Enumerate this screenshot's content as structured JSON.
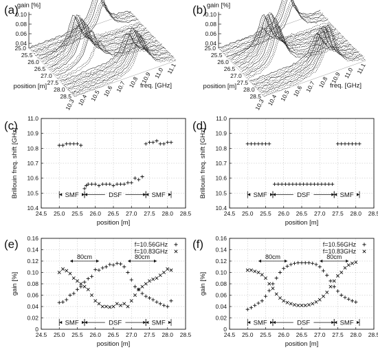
{
  "panel_letters": [
    "(a)",
    "(b)",
    "(c)",
    "(d)",
    "(e)",
    "(f)"
  ],
  "chart_data": [
    {
      "id": "a",
      "type": "area",
      "zlabel": "gain [%]",
      "xlabel": "position [m]",
      "ylabel": "freq. [GHz]",
      "ztick_labels": [
        "0.10",
        "0.08",
        "0.06",
        "0.04"
      ],
      "xtick_labels": [
        "25.0",
        "25.5",
        "26.0",
        "26.5",
        "27.0",
        "27.5",
        "28.0",
        "28.5"
      ],
      "ytick_labels": [
        "10.3",
        "10.4",
        "10.5",
        "10.6",
        "10.7",
        "10.8",
        "10.9",
        "11.0",
        "11.1"
      ],
      "zlim": [
        0.04,
        0.1
      ],
      "xlim": [
        25.0,
        28.5
      ],
      "ylim": [
        10.3,
        11.1
      ],
      "profiles": [
        {
          "position": 25.0,
          "peak_freq": 10.83,
          "peak_gain": 0.1
        },
        {
          "position": 25.25,
          "peak_freq": 10.83,
          "peak_gain": 0.1
        },
        {
          "position": 25.5,
          "peak_freq": 10.83,
          "peak_gain": 0.09
        },
        {
          "position": 25.75,
          "peak_freq": 10.6,
          "peak_gain": 0.07
        },
        {
          "position": 26.0,
          "peak_freq": 10.56,
          "peak_gain": 0.1
        },
        {
          "position": 26.25,
          "peak_freq": 10.56,
          "peak_gain": 0.11
        },
        {
          "position": 26.5,
          "peak_freq": 10.56,
          "peak_gain": 0.11
        },
        {
          "position": 26.75,
          "peak_freq": 10.56,
          "peak_gain": 0.11
        },
        {
          "position": 27.0,
          "peak_freq": 10.58,
          "peak_gain": 0.1
        },
        {
          "position": 27.25,
          "peak_freq": 10.62,
          "peak_gain": 0.08
        },
        {
          "position": 27.5,
          "peak_freq": 10.83,
          "peak_gain": 0.08
        },
        {
          "position": 27.75,
          "peak_freq": 10.84,
          "peak_gain": 0.1
        },
        {
          "position": 28.0,
          "peak_freq": 10.84,
          "peak_gain": 0.1
        },
        {
          "position": 28.25,
          "peak_freq": 10.84,
          "peak_gain": 0.1
        }
      ]
    },
    {
      "id": "b",
      "type": "area",
      "zlabel": "gain [%]",
      "xlabel": "position [m]",
      "ylabel": "freq. [GHz]",
      "ztick_labels": [
        "0.10",
        "0.08",
        "0.06",
        "0.04"
      ],
      "xtick_labels": [
        "25.0",
        "25.5",
        "26.0",
        "26.5",
        "27.0",
        "27.5",
        "28.0",
        "28.5"
      ],
      "ytick_labels": [
        "10.3",
        "10.4",
        "10.5",
        "10.6",
        "10.7",
        "10.8",
        "10.9",
        "11.0",
        "11.1"
      ],
      "zlim": [
        0.04,
        0.1
      ],
      "xlim": [
        25.0,
        28.5
      ],
      "ylim": [
        10.3,
        11.1
      ],
      "profiles": [
        {
          "position": 25.0,
          "peak_freq": 10.83,
          "peak_gain": 0.1
        },
        {
          "position": 25.25,
          "peak_freq": 10.83,
          "peak_gain": 0.1
        },
        {
          "position": 25.5,
          "peak_freq": 10.83,
          "peak_gain": 0.09
        },
        {
          "position": 25.75,
          "peak_freq": 10.56,
          "peak_gain": 0.07
        },
        {
          "position": 26.0,
          "peak_freq": 10.56,
          "peak_gain": 0.1
        },
        {
          "position": 26.25,
          "peak_freq": 10.56,
          "peak_gain": 0.11
        },
        {
          "position": 26.5,
          "peak_freq": 10.56,
          "peak_gain": 0.12
        },
        {
          "position": 26.75,
          "peak_freq": 10.56,
          "peak_gain": 0.12
        },
        {
          "position": 27.0,
          "peak_freq": 10.56,
          "peak_gain": 0.11
        },
        {
          "position": 27.25,
          "peak_freq": 10.56,
          "peak_gain": 0.1
        },
        {
          "position": 27.5,
          "peak_freq": 10.83,
          "peak_gain": 0.08
        },
        {
          "position": 27.75,
          "peak_freq": 10.83,
          "peak_gain": 0.1
        },
        {
          "position": 28.0,
          "peak_freq": 10.83,
          "peak_gain": 0.11
        },
        {
          "position": 28.25,
          "peak_freq": 10.83,
          "peak_gain": 0.12
        }
      ]
    },
    {
      "id": "c",
      "type": "scatter",
      "xlabel": "position [m]",
      "ylabel": "Brillouin freq. shift [GHz]",
      "xlim": [
        24.5,
        28.5
      ],
      "ylim": [
        10.4,
        11.0
      ],
      "xticks": [
        24.5,
        25.0,
        25.5,
        26.0,
        26.5,
        27.0,
        27.5,
        28.0,
        28.5
      ],
      "xtick_labels": [
        "24.5",
        "25.0",
        "25.5",
        "26.0",
        "26.5",
        "27.0",
        "27.5",
        "28.0",
        "28.5"
      ],
      "yticks": [
        10.4,
        10.5,
        10.6,
        10.7,
        10.8,
        10.9,
        11.0
      ],
      "ytick_labels": [
        "10.4",
        "10.5",
        "10.6",
        "10.7",
        "10.8",
        "10.9",
        "11.0"
      ],
      "grid": true,
      "regions": [
        {
          "label": "SMF",
          "from": 25.0,
          "to": 25.7
        },
        {
          "label": "DSF",
          "from": 25.7,
          "to": 27.4
        },
        {
          "label": "SMF",
          "from": 27.4,
          "to": 28.1
        }
      ],
      "region_y": 10.49,
      "series": [
        {
          "marker": "+",
          "x": [
            25.0,
            25.1,
            25.2,
            25.3,
            25.4,
            25.5,
            25.6,
            25.7,
            25.75,
            25.8,
            25.9,
            26.0,
            26.1,
            26.2,
            26.3,
            26.4,
            26.5,
            26.6,
            26.7,
            26.8,
            26.9,
            27.0,
            27.1,
            27.2,
            27.3,
            27.4,
            27.5,
            27.6,
            27.7,
            27.8,
            27.9,
            28.0,
            28.1
          ],
          "y": [
            10.82,
            10.82,
            10.83,
            10.83,
            10.83,
            10.83,
            10.82,
            10.53,
            10.55,
            10.56,
            10.56,
            10.56,
            10.55,
            10.56,
            10.56,
            10.56,
            10.55,
            10.56,
            10.56,
            10.56,
            10.57,
            10.57,
            10.6,
            10.59,
            10.61,
            10.83,
            10.84,
            10.84,
            10.85,
            10.83,
            10.83,
            10.84,
            10.84
          ]
        }
      ]
    },
    {
      "id": "d",
      "type": "scatter",
      "xlabel": "position [m]",
      "ylabel": "Brillouin freq. shift [GHz]",
      "xlim": [
        24.5,
        28.5
      ],
      "ylim": [
        10.4,
        11.0
      ],
      "xticks": [
        24.5,
        25.0,
        25.5,
        26.0,
        26.5,
        27.0,
        27.5,
        28.0,
        28.5
      ],
      "xtick_labels": [
        "24.5",
        "25.0",
        "25.5",
        "26.0",
        "26.5",
        "27.0",
        "27.5",
        "28.0",
        "28.5"
      ],
      "yticks": [
        10.4,
        10.5,
        10.6,
        10.7,
        10.8,
        10.9,
        11.0
      ],
      "ytick_labels": [
        "10.4",
        "10.5",
        "10.6",
        "10.7",
        "10.8",
        "10.9",
        "11.0"
      ],
      "grid": true,
      "regions": [
        {
          "label": "SMF",
          "from": 25.0,
          "to": 25.7
        },
        {
          "label": "DSF",
          "from": 25.7,
          "to": 27.4
        },
        {
          "label": "SMF",
          "from": 27.4,
          "to": 28.1
        }
      ],
      "region_y": 10.49,
      "series": [
        {
          "marker": "+",
          "x": [
            25.0,
            25.1,
            25.2,
            25.3,
            25.4,
            25.5,
            25.6,
            25.75,
            25.85,
            25.95,
            26.05,
            26.15,
            26.25,
            26.35,
            26.45,
            26.55,
            26.65,
            26.75,
            26.85,
            26.95,
            27.05,
            27.15,
            27.25,
            27.35,
            27.5,
            27.6,
            27.7,
            27.8,
            27.9,
            28.0,
            28.1
          ],
          "y": [
            10.83,
            10.83,
            10.83,
            10.83,
            10.83,
            10.83,
            10.83,
            10.56,
            10.56,
            10.56,
            10.56,
            10.56,
            10.56,
            10.56,
            10.56,
            10.56,
            10.56,
            10.56,
            10.56,
            10.56,
            10.56,
            10.56,
            10.56,
            10.56,
            10.83,
            10.83,
            10.83,
            10.83,
            10.83,
            10.83,
            10.83
          ]
        }
      ]
    },
    {
      "id": "e",
      "type": "scatter",
      "xlabel": "position [m]",
      "ylabel": "gain [%]",
      "xlim": [
        24.5,
        28.5
      ],
      "ylim": [
        0.0,
        0.16
      ],
      "xticks": [
        24.5,
        25.0,
        25.5,
        26.0,
        26.5,
        27.0,
        27.5,
        28.0,
        28.5
      ],
      "xtick_labels": [
        "24.5",
        "25.0",
        "25.5",
        "26.0",
        "26.5",
        "27.0",
        "27.5",
        "28.0",
        "28.5"
      ],
      "yticks": [
        0.0,
        0.02,
        0.04,
        0.06,
        0.08,
        0.1,
        0.12,
        0.14,
        0.16
      ],
      "ytick_labels": [
        "0",
        "0.02",
        "0.04",
        "0.06",
        "0.08",
        "0.10",
        "0.12",
        "0.14",
        "0.16"
      ],
      "grid": true,
      "regions": [
        {
          "label": "SMF",
          "from": 25.0,
          "to": 25.7
        },
        {
          "label": "DSF",
          "from": 25.7,
          "to": 27.4
        },
        {
          "label": "SMF",
          "from": 27.4,
          "to": 28.1
        }
      ],
      "region_y": 0.012,
      "annotations": [
        {
          "text": "80cm",
          "from": 25.3,
          "to": 26.1,
          "y": 0.12
        },
        {
          "text": "80cm",
          "from": 26.9,
          "to": 27.7,
          "y": 0.12
        }
      ],
      "legend_position": "top-right",
      "series": [
        {
          "name": "f=10.56GHz",
          "marker": "+",
          "x": [
            25.0,
            25.1,
            25.2,
            25.3,
            25.4,
            25.5,
            25.6,
            25.7,
            25.8,
            25.9,
            26.0,
            26.1,
            26.2,
            26.3,
            26.4,
            26.5,
            26.6,
            26.7,
            26.8,
            26.9,
            27.0,
            27.1,
            27.2,
            27.3,
            27.4,
            27.5,
            27.6,
            27.7,
            27.8,
            27.9,
            28.0,
            28.1
          ],
          "y": [
            0.047,
            0.048,
            0.052,
            0.06,
            0.063,
            0.07,
            0.075,
            0.083,
            0.089,
            0.093,
            0.105,
            0.104,
            0.108,
            0.11,
            0.114,
            0.113,
            0.116,
            0.115,
            0.11,
            0.1,
            0.087,
            0.075,
            0.07,
            0.063,
            0.058,
            0.055,
            0.052,
            0.048,
            0.045,
            0.042,
            0.04,
            0.05
          ]
        },
        {
          "name": "f=10.83GHz",
          "marker": "x",
          "x": [
            25.0,
            25.1,
            25.2,
            25.3,
            25.4,
            25.5,
            25.6,
            25.7,
            25.8,
            25.9,
            26.0,
            26.1,
            26.2,
            26.3,
            26.4,
            26.5,
            26.6,
            26.7,
            26.8,
            26.9,
            27.0,
            27.1,
            27.2,
            27.3,
            27.4,
            27.5,
            27.6,
            27.7,
            27.8,
            27.9,
            28.0,
            28.1
          ],
          "y": [
            0.1,
            0.106,
            0.103,
            0.098,
            0.09,
            0.085,
            0.08,
            0.075,
            0.07,
            0.06,
            0.05,
            0.045,
            0.04,
            0.04,
            0.039,
            0.04,
            0.045,
            0.042,
            0.045,
            0.04,
            0.05,
            0.06,
            0.07,
            0.075,
            0.08,
            0.085,
            0.088,
            0.09,
            0.095,
            0.1,
            0.106,
            0.104
          ]
        }
      ]
    },
    {
      "id": "f",
      "type": "scatter",
      "xlabel": "position [m]",
      "ylabel": "gain [%]",
      "xlim": [
        24.5,
        28.5
      ],
      "ylim": [
        0.0,
        0.16
      ],
      "xticks": [
        24.5,
        25.0,
        25.5,
        26.0,
        26.5,
        27.0,
        27.5,
        28.0,
        28.5
      ],
      "xtick_labels": [
        "24.5",
        "25.0",
        "25.5",
        "26.0",
        "26.5",
        "27.0",
        "27.5",
        "28.0",
        "28.5"
      ],
      "yticks": [
        0.0,
        0.02,
        0.04,
        0.06,
        0.08,
        0.1,
        0.12,
        0.14,
        0.16
      ],
      "ytick_labels": [
        "0",
        "0.02",
        "0.04",
        "0.06",
        "0.08",
        "0.10",
        "0.12",
        "0.14",
        "0.16"
      ],
      "grid": true,
      "regions": [
        {
          "label": "SMF",
          "from": 25.0,
          "to": 25.7
        },
        {
          "label": "DSF",
          "from": 25.7,
          "to": 27.4
        },
        {
          "label": "SMF",
          "from": 27.4,
          "to": 28.1
        }
      ],
      "region_y": 0.012,
      "annotations": [
        {
          "text": "80cm",
          "from": 25.3,
          "to": 26.1,
          "y": 0.12
        },
        {
          "text": "80cm",
          "from": 27.0,
          "to": 27.8,
          "y": 0.12
        }
      ],
      "legend_position": "top-right",
      "series": [
        {
          "name": "f=10.56GHz",
          "marker": "+",
          "x": [
            25.0,
            25.1,
            25.2,
            25.3,
            25.4,
            25.5,
            25.6,
            25.7,
            25.8,
            25.9,
            26.0,
            26.1,
            26.2,
            26.3,
            26.4,
            26.5,
            26.6,
            26.7,
            26.8,
            26.9,
            27.0,
            27.1,
            27.2,
            27.3,
            27.4,
            27.5,
            27.6,
            27.7,
            27.8,
            27.9,
            28.0
          ],
          "y": [
            0.035,
            0.038,
            0.042,
            0.046,
            0.05,
            0.058,
            0.068,
            0.08,
            0.09,
            0.1,
            0.107,
            0.111,
            0.114,
            0.116,
            0.117,
            0.117,
            0.117,
            0.117,
            0.116,
            0.114,
            0.11,
            0.103,
            0.095,
            0.085,
            0.075,
            0.067,
            0.06,
            0.056,
            0.053,
            0.05,
            0.048
          ]
        },
        {
          "name": "f=10.83GHz",
          "marker": "x",
          "x": [
            25.0,
            25.1,
            25.2,
            25.3,
            25.4,
            25.5,
            25.6,
            25.7,
            25.8,
            25.9,
            26.0,
            26.1,
            26.2,
            26.3,
            26.4,
            26.5,
            26.6,
            26.7,
            26.8,
            26.9,
            27.0,
            27.1,
            27.2,
            27.3,
            27.4,
            27.5,
            27.6,
            27.7,
            27.8,
            27.9,
            28.0
          ],
          "y": [
            0.104,
            0.104,
            0.102,
            0.1,
            0.096,
            0.09,
            0.08,
            0.072,
            0.062,
            0.055,
            0.05,
            0.047,
            0.045,
            0.043,
            0.042,
            0.042,
            0.042,
            0.043,
            0.045,
            0.048,
            0.052,
            0.058,
            0.065,
            0.075,
            0.085,
            0.094,
            0.1,
            0.108,
            0.113,
            0.116,
            0.118
          ]
        }
      ]
    }
  ]
}
